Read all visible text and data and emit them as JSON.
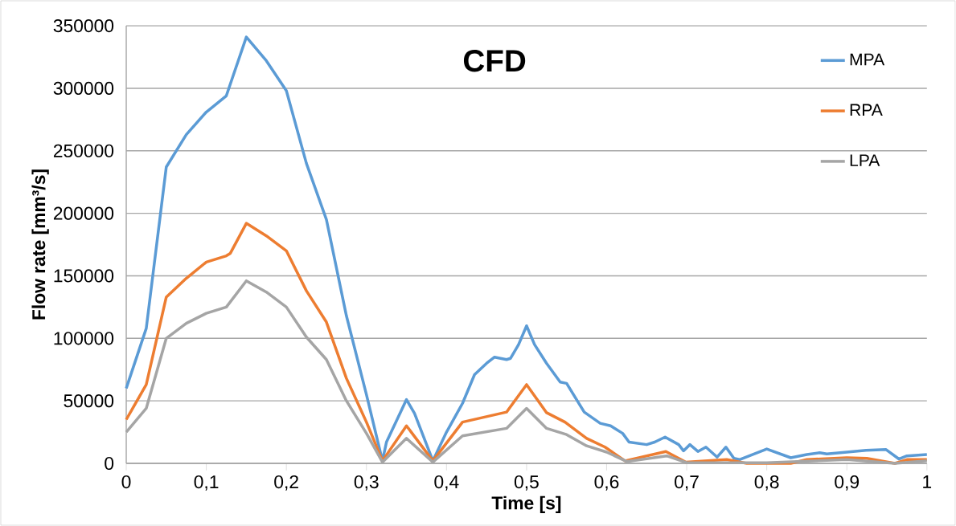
{
  "chart_data": {
    "type": "line",
    "title": "CFD",
    "xlabel": "Time [s]",
    "ylabel": "Flow rate [mm³/s]",
    "series": [
      {
        "name": "MPA",
        "color": "#5b9bd5",
        "x": [
          0,
          0.025,
          0.05,
          0.075,
          0.1,
          0.125,
          0.15,
          0.175,
          0.2,
          0.225,
          0.25,
          0.275,
          0.3,
          0.32,
          0.325,
          0.35,
          0.36,
          0.383,
          0.4,
          0.42,
          0.435,
          0.45,
          0.46,
          0.475,
          0.48,
          0.49,
          0.5,
          0.51,
          0.525,
          0.542,
          0.55,
          0.572,
          0.592,
          0.605,
          0.62,
          0.628,
          0.65,
          0.66,
          0.673,
          0.69,
          0.696,
          0.704,
          0.714,
          0.724,
          0.738,
          0.749,
          0.759,
          0.766,
          0.8,
          0.83,
          0.85,
          0.866,
          0.875,
          0.9,
          0.924,
          0.949,
          0.965,
          0.975,
          1.0
        ],
        "values": [
          60000,
          108000,
          237000,
          263000,
          281000,
          294000,
          341000,
          322000,
          298000,
          240000,
          195000,
          118000,
          55000,
          2000,
          17000,
          51000,
          40000,
          2000,
          25000,
          48000,
          71000,
          80000,
          85000,
          83000,
          84000,
          95000,
          110000,
          95000,
          80000,
          65000,
          64000,
          41000,
          32000,
          30000,
          24000,
          17000,
          15000,
          17000,
          21000,
          15000,
          10000,
          15000,
          9500,
          13000,
          5000,
          13000,
          4000,
          3000,
          11500,
          4500,
          7000,
          8500,
          7500,
          9000,
          10500,
          11000,
          3500,
          6000,
          7000
        ]
      },
      {
        "name": "RPA",
        "color": "#ed7d31",
        "x": [
          0,
          0.025,
          0.05,
          0.075,
          0.1,
          0.125,
          0.13,
          0.15,
          0.175,
          0.2,
          0.225,
          0.25,
          0.275,
          0.3,
          0.32,
          0.35,
          0.383,
          0.42,
          0.475,
          0.5,
          0.525,
          0.548,
          0.575,
          0.598,
          0.623,
          0.674,
          0.699,
          0.75,
          0.775,
          0.8,
          0.83,
          0.85,
          0.9,
          0.925,
          0.96,
          0.975,
          1.0
        ],
        "values": [
          35000,
          63000,
          133000,
          148000,
          161000,
          166000,
          168000,
          192000,
          182000,
          170000,
          138000,
          113000,
          68000,
          33000,
          2000,
          30000,
          2000,
          33000,
          41000,
          63000,
          40500,
          33000,
          20000,
          13000,
          2000,
          9500,
          1000,
          3000,
          0,
          0,
          0,
          3000,
          4500,
          4000,
          0,
          3000,
          3000
        ]
      },
      {
        "name": "LPA",
        "color": "#a5a5a5",
        "x": [
          0,
          0.025,
          0.05,
          0.075,
          0.1,
          0.125,
          0.15,
          0.175,
          0.2,
          0.225,
          0.25,
          0.275,
          0.3,
          0.32,
          0.35,
          0.383,
          0.42,
          0.475,
          0.5,
          0.525,
          0.55,
          0.575,
          0.6,
          0.625,
          0.675,
          0.7,
          0.8,
          0.9,
          0.96,
          1.0
        ],
        "values": [
          25000,
          44000,
          100000,
          112000,
          120000,
          125000,
          146000,
          137000,
          125000,
          101000,
          83000,
          50000,
          24000,
          1000,
          20000,
          1000,
          22000,
          28000,
          44000,
          28000,
          23000,
          14000,
          9000,
          1500,
          6000,
          500,
          500,
          3000,
          0,
          2000
        ]
      }
    ],
    "xlim": [
      0,
      1
    ],
    "ylim": [
      0,
      350000
    ],
    "xticks": [
      0,
      {
        "value": 0.1,
        "label": "0,1"
      },
      {
        "value": 0.2,
        "label": "0,2"
      },
      {
        "value": 0.3,
        "label": "0,3"
      },
      {
        "value": 0.4,
        "label": "0,4"
      },
      {
        "value": 0.5,
        "label": "0,5"
      },
      {
        "value": 0.6,
        "label": "0,6"
      },
      {
        "value": 0.7,
        "label": "0,7"
      },
      {
        "value": 0.8,
        "label": "0,8"
      },
      {
        "value": 0.9,
        "label": "0,9"
      },
      1
    ],
    "yticks": [
      0,
      50000,
      100000,
      150000,
      200000,
      250000,
      300000,
      350000
    ],
    "grid": "y",
    "legend": "top right",
    "marker": "none",
    "line_style": "solid"
  }
}
